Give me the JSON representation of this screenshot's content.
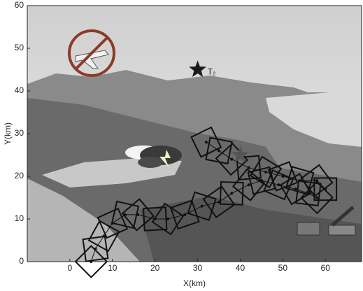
{
  "chart_data": {
    "type": "trajectory",
    "xlabel": "X(km)",
    "ylabel": "Y(km)",
    "xlim": [
      -10,
      68.5
    ],
    "ylim": [
      0,
      60
    ],
    "xticks": [
      0,
      10,
      20,
      30,
      40,
      50,
      60
    ],
    "yticks": [
      0,
      10,
      20,
      30,
      40,
      50,
      60
    ],
    "series": [
      {
        "color": "#111",
        "x": [
          5,
          6,
          8,
          10,
          13,
          16,
          20,
          23,
          27,
          31,
          35,
          38,
          42,
          45,
          49,
          53,
          56,
          58
        ],
        "values": [
          0,
          3,
          6,
          9,
          11,
          11,
          10,
          10,
          11,
          13,
          14,
          16,
          18,
          19,
          18,
          17,
          16,
          15
        ]
      },
      {
        "color": "#111",
        "x": [
          32,
          35,
          38,
          42,
          46,
          50,
          54,
          58,
          60
        ],
        "values": [
          28,
          26,
          24,
          22,
          21,
          20,
          19,
          19,
          17
        ]
      }
    ],
    "targets": [
      {
        "label": "T₂",
        "x": 30,
        "y": 45,
        "color": "#1a1a1a"
      },
      {
        "x": 40,
        "y": 25,
        "color": "#555"
      }
    ]
  }
}
